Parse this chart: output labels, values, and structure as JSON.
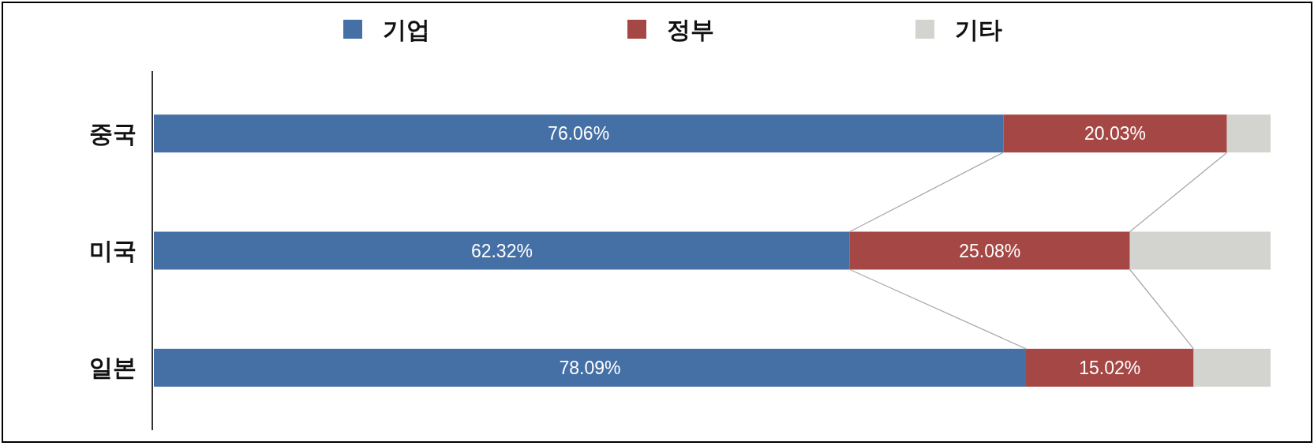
{
  "chart_data": {
    "type": "bar",
    "orientation": "horizontal",
    "stacked": true,
    "categories": [
      "중국",
      "미국",
      "일본"
    ],
    "series": [
      {
        "name": "기업",
        "color": "#4570a6",
        "values": [
          76.06,
          62.32,
          78.09
        ],
        "value_labels": [
          "76.06%",
          "62.32%",
          "78.09%"
        ]
      },
      {
        "name": "정부",
        "color": "#a54744",
        "values": [
          20.03,
          25.08,
          15.02
        ],
        "value_labels": [
          "20.03%",
          "25.08%",
          "15.02%"
        ]
      },
      {
        "name": "기타",
        "color": "#d3d3cf",
        "values": [
          3.91,
          12.6,
          6.89
        ]
      }
    ],
    "legend": "top"
  }
}
